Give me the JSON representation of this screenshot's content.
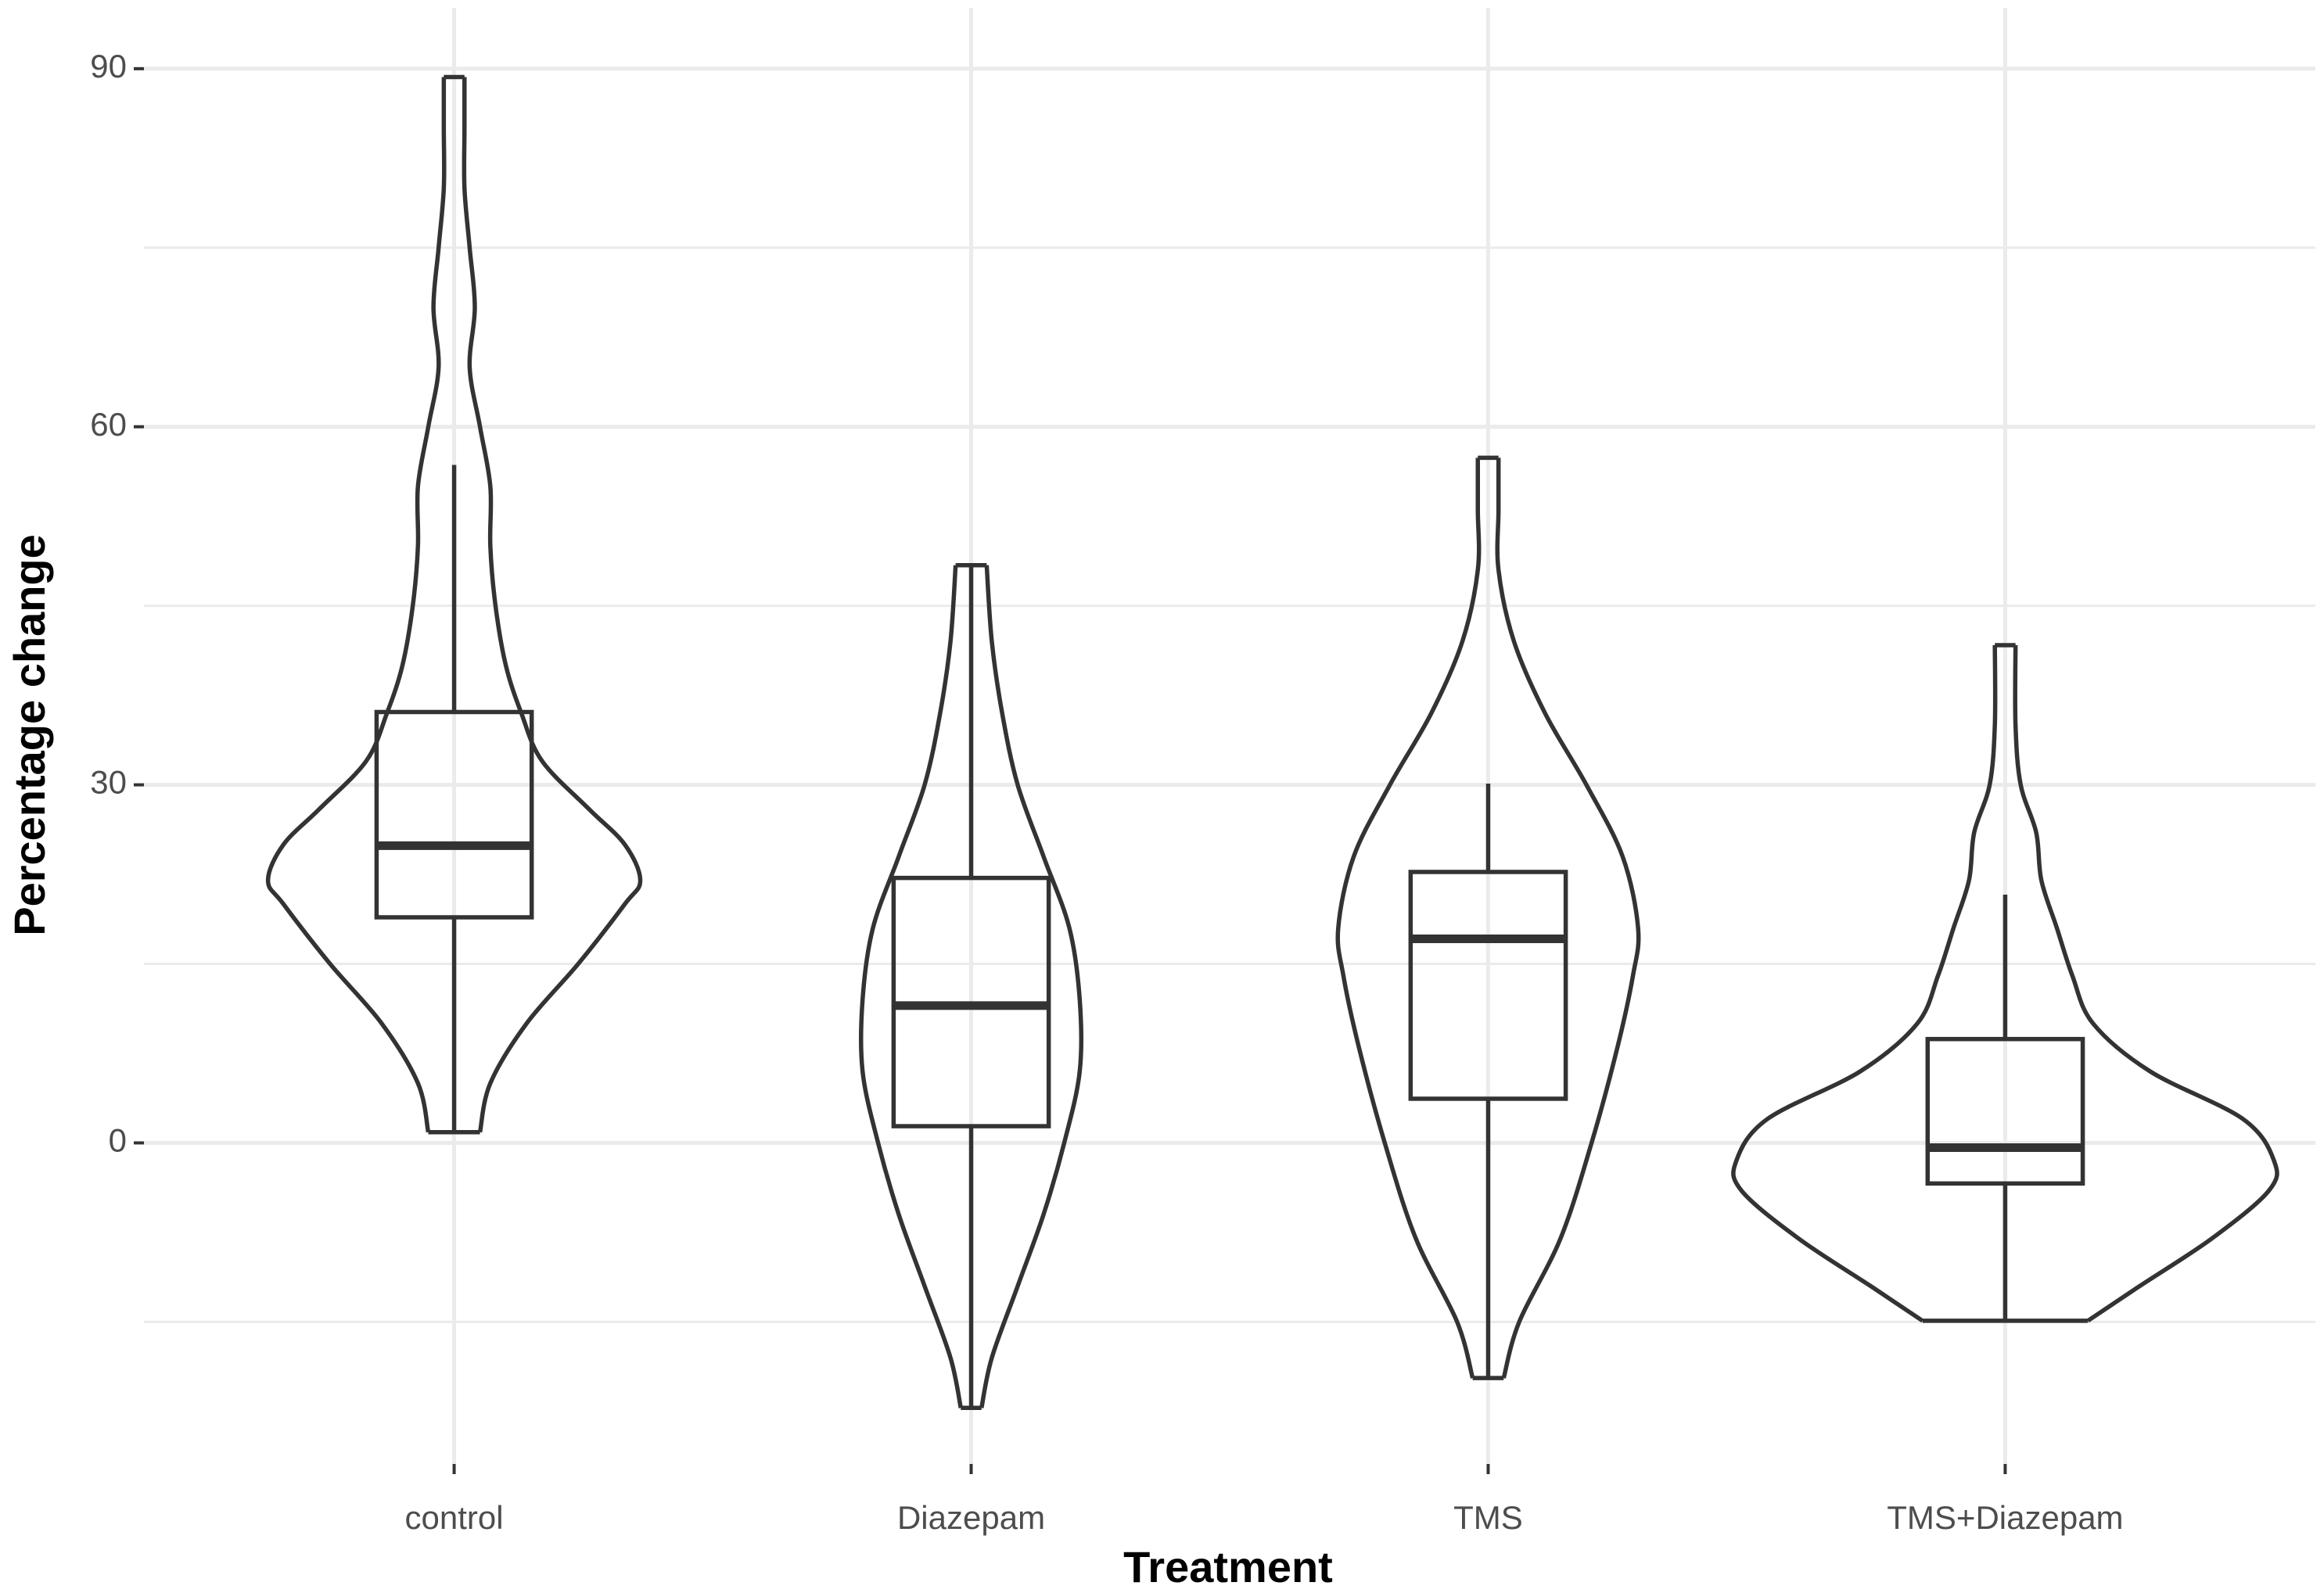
{
  "chart_data": {
    "type": "violin-box",
    "x_label": "Treatment",
    "y_label": "Percentage change",
    "categories": [
      "control",
      "Diazepam",
      "TMS",
      "TMS+Diazepam"
    ],
    "color": "#333333",
    "grid": true,
    "ylim": [
      -26.9,
      95.1
    ],
    "yticks": [
      0,
      30,
      60,
      90
    ],
    "yminor": [
      -15,
      15,
      45,
      75
    ],
    "boxes": [
      {
        "whisker_low": 0.9,
        "q1": 18.9,
        "median": 24.9,
        "q3": 36.1,
        "whisker_high": 56.8
      },
      {
        "whisker_low": -22.2,
        "q1": 1.4,
        "median": 11.5,
        "q3": 22.2,
        "whisker_high": 48.4
      },
      {
        "whisker_low": -19.7,
        "q1": 3.7,
        "median": 17.1,
        "q3": 22.7,
        "whisker_high": 30.1
      },
      {
        "whisker_low": -14.9,
        "q1": -3.4,
        "median": -0.4,
        "q3": 8.7,
        "whisker_high": 20.8
      }
    ],
    "violins": [
      {
        "y": [
          0.9,
          5,
          10,
          15,
          20,
          22,
          25,
          28,
          32,
          36,
          40,
          45,
          50,
          55,
          60,
          65,
          70,
          75,
          80,
          85,
          89.3
        ],
        "width": [
          0.05,
          0.07,
          0.14,
          0.24,
          0.33,
          0.36,
          0.33,
          0.26,
          0.17,
          0.13,
          0.1,
          0.08,
          0.07,
          0.07,
          0.05,
          0.03,
          0.04,
          0.03,
          0.02,
          0.02,
          0.02
        ]
      },
      {
        "y": [
          -22.2,
          -18,
          -12,
          -6,
          0,
          6,
          12,
          18,
          24,
          30,
          36,
          42,
          48.4
        ],
        "width": [
          0.02,
          0.04,
          0.09,
          0.14,
          0.18,
          0.21,
          0.21,
          0.19,
          0.14,
          0.09,
          0.06,
          0.04,
          0.03
        ]
      },
      {
        "y": [
          -19.7,
          -15,
          -8,
          0,
          8,
          14,
          18,
          24,
          30,
          36,
          42,
          48,
          53,
          57.4
        ],
        "width": [
          0.03,
          0.06,
          0.14,
          0.2,
          0.25,
          0.28,
          0.29,
          0.26,
          0.19,
          0.11,
          0.05,
          0.02,
          0.02,
          0.02
        ]
      },
      {
        "y": [
          -14.9,
          -12,
          -8,
          -4,
          -1.5,
          2,
          6,
          10,
          14,
          18,
          22,
          26,
          30,
          35,
          41.7
        ],
        "width": [
          0.16,
          0.26,
          0.4,
          0.51,
          0.52,
          0.46,
          0.28,
          0.17,
          0.13,
          0.1,
          0.07,
          0.06,
          0.03,
          0.02,
          0.02
        ]
      }
    ]
  }
}
